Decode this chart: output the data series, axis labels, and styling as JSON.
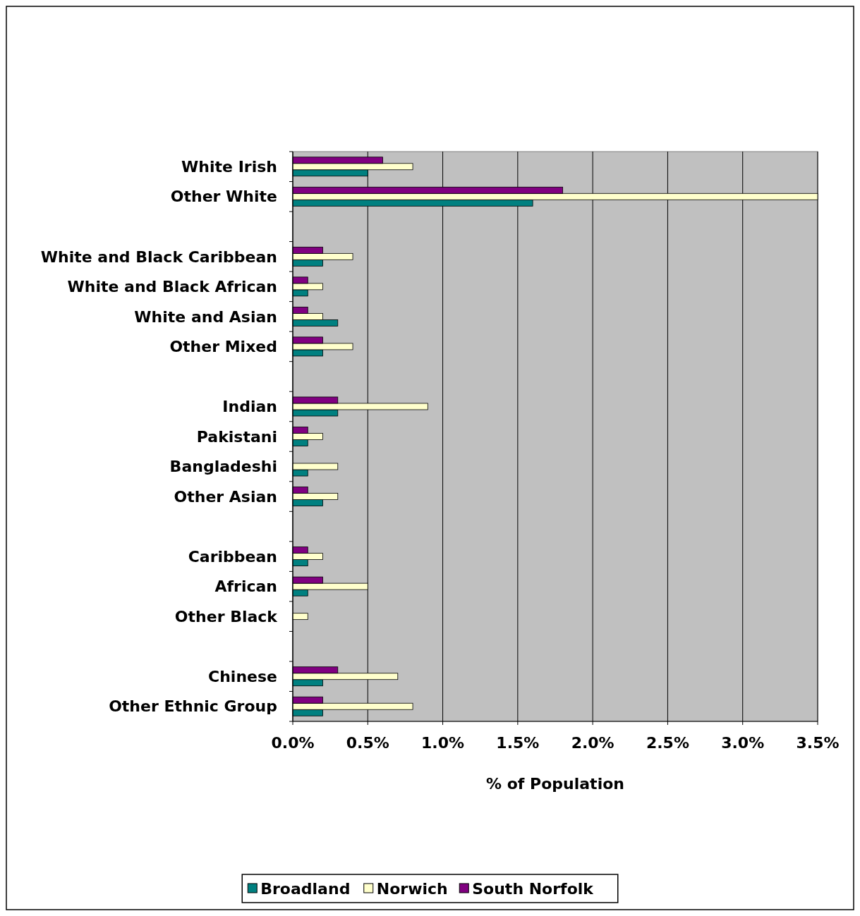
{
  "chart_data": {
    "type": "bar",
    "orientation": "horizontal",
    "xlabel": "% of Population",
    "categories": [
      "White Irish",
      "Other White",
      null,
      "White and Black Caribbean",
      "White and Black African",
      "White and Asian",
      "Other Mixed",
      null,
      "Indian",
      "Pakistani",
      "Bangladeshi",
      "Other Asian",
      null,
      "Caribbean",
      "African",
      "Other Black",
      null,
      "Chinese",
      "Other Ethnic Group"
    ],
    "series": [
      {
        "name": "Broadland",
        "color": "#008080",
        "values": [
          0.5,
          1.6,
          null,
          0.2,
          0.1,
          0.3,
          0.2,
          null,
          0.3,
          0.1,
          0.1,
          0.2,
          null,
          0.1,
          0.1,
          0,
          null,
          0.2,
          0.2
        ]
      },
      {
        "name": "Norwich",
        "color": "#ffffcc",
        "values": [
          0.8,
          3.5,
          null,
          0.4,
          0.2,
          0.2,
          0.4,
          null,
          0.9,
          0.2,
          0.3,
          0.3,
          null,
          0.2,
          0.5,
          0.1,
          null,
          0.7,
          0.8
        ]
      },
      {
        "name": "South Norfolk",
        "color": "#800080",
        "values": [
          0.6,
          1.8,
          null,
          0.2,
          0.1,
          0.1,
          0.2,
          null,
          0.3,
          0.1,
          0,
          0.1,
          null,
          0.1,
          0.2,
          0,
          null,
          0.3,
          0.2
        ]
      }
    ],
    "xlim": [
      0,
      3.5
    ],
    "xticks": [
      {
        "value": 0,
        "label": "0.0%"
      },
      {
        "value": 0.5,
        "label": "0.5%"
      },
      {
        "value": 1,
        "label": "1.0%"
      },
      {
        "value": 1.5,
        "label": "1.5%"
      },
      {
        "value": 2,
        "label": "2.0%"
      },
      {
        "value": 2.5,
        "label": "2.5%"
      },
      {
        "value": 3,
        "label": "3.0%"
      },
      {
        "value": 3.5,
        "label": "3.5%"
      }
    ],
    "grid": "x",
    "legend": "bottom"
  }
}
